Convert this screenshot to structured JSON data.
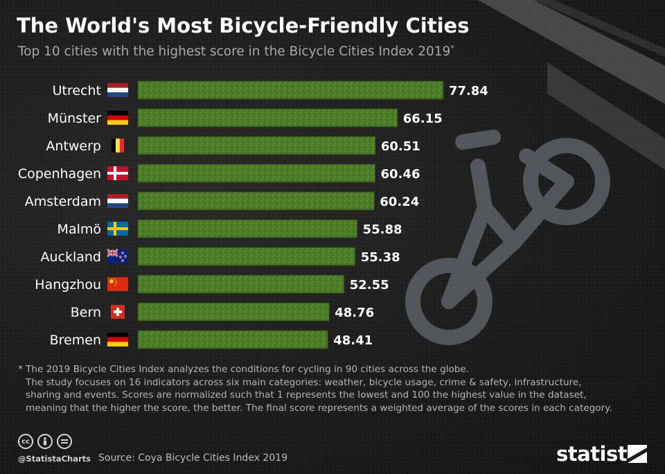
{
  "title": "The World's Most Bicycle-Friendly Cities",
  "subtitle": "Top 10 cities with the highest score in the Bicycle Cities Index 2019",
  "subtitle_mark": "*",
  "chart_data": {
    "type": "bar",
    "orientation": "horizontal",
    "categories": [
      "Utrecht",
      "Münster",
      "Antwerp",
      "Copenhagen",
      "Amsterdam",
      "Malmö",
      "Auckland",
      "Hangzhou",
      "Bern",
      "Bremen"
    ],
    "values": [
      77.84,
      66.15,
      60.51,
      60.46,
      60.24,
      55.88,
      55.38,
      52.55,
      48.76,
      48.41
    ],
    "value_labels": [
      "77.84",
      "66.15",
      "60.51",
      "60.46",
      "60.24",
      "55.88",
      "55.38",
      "52.55",
      "48.76",
      "48.41"
    ],
    "flags": [
      "netherlands-flag",
      "germany-flag",
      "belgium-flag",
      "denmark-flag",
      "netherlands-flag",
      "sweden-flag",
      "new-zealand-flag",
      "china-flag",
      "switzerland-flag",
      "germany-flag"
    ],
    "bar_color": "#4a7a26",
    "grid": false,
    "legend": "none"
  },
  "footnote": [
    "* The 2019 Bicycle Cities Index analyzes the conditions for cycling in 90 cities across the globe.",
    "The study focuses on 16 indicators across six main categories: weather, bicycle usage, crime & safety, infrastructure,",
    "sharing and events. Scores are normalized such that 1 represents the lowest and 100 the highest value in the dataset,",
    "meaning that the higher the score, the better. The final score represents a weighted average of the scores in each category."
  ],
  "license_icons": [
    "cc-icon",
    "by-icon",
    "nd-icon"
  ],
  "credit": "@StatistaCharts",
  "source": "Source: Coya Bicycle Cities Index 2019",
  "brand": "statista"
}
